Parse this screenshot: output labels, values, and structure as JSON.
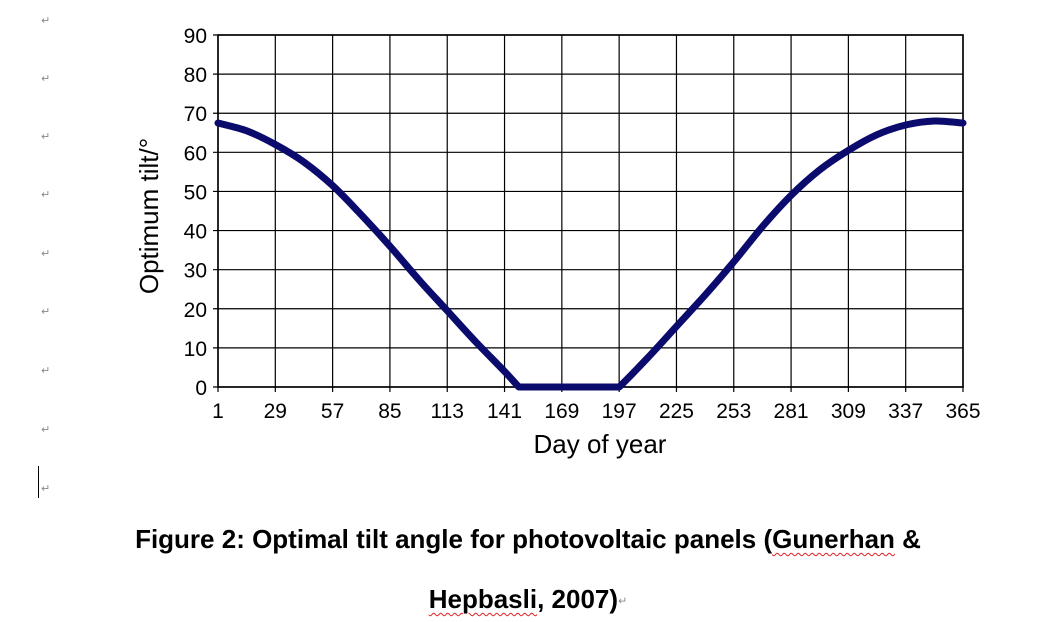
{
  "document": {
    "paragraph_mark": "↵"
  },
  "chart_data": {
    "type": "line",
    "title": "",
    "xlabel": "Day of year",
    "ylabel": "Optimum tilt/°",
    "xlim": [
      1,
      365
    ],
    "ylim": [
      0,
      90
    ],
    "x_ticks": [
      1,
      29,
      57,
      85,
      113,
      141,
      169,
      197,
      225,
      253,
      281,
      309,
      337,
      365
    ],
    "y_ticks": [
      0,
      10,
      20,
      30,
      40,
      50,
      60,
      70,
      80,
      90
    ],
    "grid": true,
    "series": [
      {
        "color": "#0b0b6e",
        "x": [
          1,
          15,
          29,
          43,
          57,
          71,
          85,
          99,
          113,
          127,
          141,
          148,
          155,
          169,
          183,
          197,
          211,
          225,
          239,
          253,
          267,
          281,
          295,
          309,
          323,
          337,
          351,
          365
        ],
        "y": [
          67.5,
          65.5,
          62,
          57.5,
          51.5,
          44,
          36,
          27.5,
          19.5,
          11.5,
          4,
          0,
          0,
          0,
          0,
          0,
          7.5,
          15.5,
          23.5,
          32,
          41,
          49,
          55.5,
          60.5,
          64.5,
          67,
          68,
          67.5
        ]
      }
    ]
  },
  "caption": {
    "line1_text": "Figure 2: Optimal tilt angle for photovoltaic panels (",
    "line1_author": "Gunerhan",
    "line1_end": " &",
    "line2_author": "Hepbasli",
    "line2_end": ", 2007)"
  }
}
